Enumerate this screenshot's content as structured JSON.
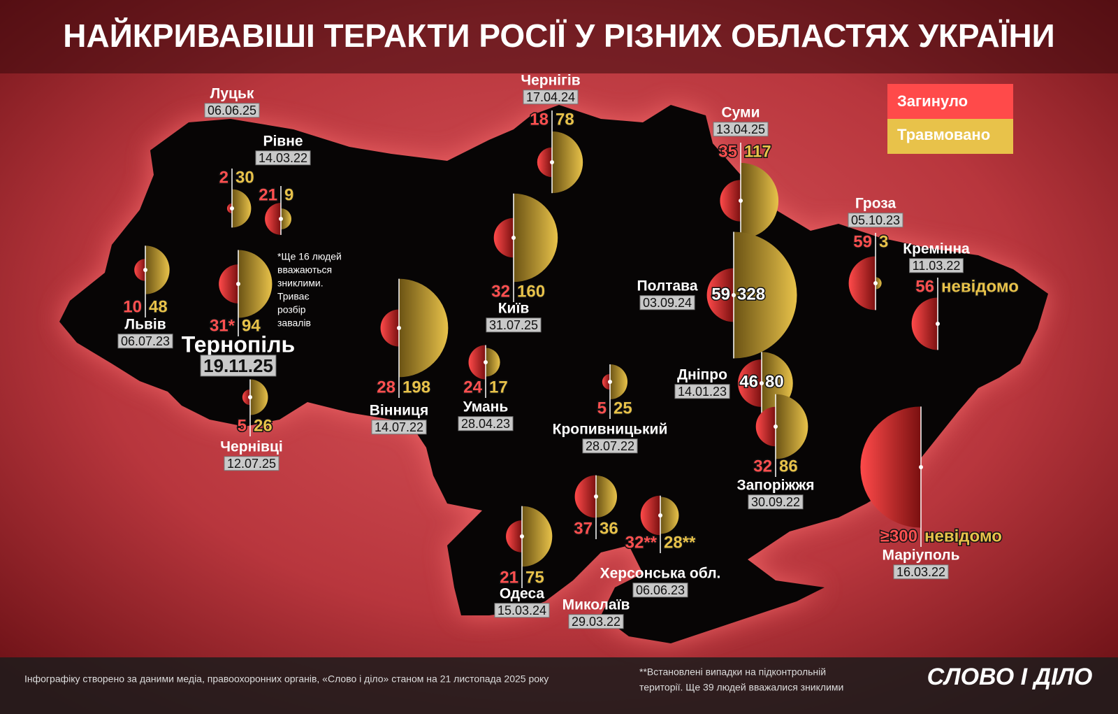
{
  "title": "НАЙКРИВАВІШІ ТЕРАКТИ РОСІЇ У РІЗНИХ ОБЛАСТЯХ УКРАЇНИ",
  "legend": {
    "killed": "Загинуло",
    "injured": "Травмовано"
  },
  "events": [
    {
      "city": "Луцьк",
      "date": "06.06.25",
      "killed": 2,
      "injured": 30
    },
    {
      "city": "Рівне",
      "date": "14.03.22",
      "killed": 21,
      "injured": 9
    },
    {
      "city": "Львів",
      "date": "06.07.23",
      "killed": 10,
      "injured": 48
    },
    {
      "city": "Тернопіль",
      "date": "19.11.25",
      "killed": 31,
      "killed_label": "31*",
      "injured": 94
    },
    {
      "city": "Чернівці",
      "date": "12.07.25",
      "killed": 5,
      "injured": 26
    },
    {
      "city": "Чернігів",
      "date": "17.04.24",
      "killed": 18,
      "injured": 78
    },
    {
      "city": "Київ",
      "date": "31.07.25",
      "killed": 32,
      "injured": 160
    },
    {
      "city": "Вінниця",
      "date": "14.07.22",
      "killed": 28,
      "injured": 198
    },
    {
      "city": "Умань",
      "date": "28.04.23",
      "killed": 24,
      "injured": 17
    },
    {
      "city": "Кропивницький",
      "date": "28.07.22",
      "killed": 5,
      "injured": 25
    },
    {
      "city": "Суми",
      "date": "13.04.25",
      "killed": 35,
      "injured": 117
    },
    {
      "city": "Полтава",
      "date": "03.09.24",
      "killed": 59,
      "injured": 328
    },
    {
      "city": "Дніпро",
      "date": "14.01.23",
      "killed": 46,
      "injured": 80
    },
    {
      "city": "Запоріжжя",
      "date": "30.09.22",
      "killed": 32,
      "injured": 86
    },
    {
      "city": "Гроза",
      "date": "05.10.23",
      "killed": 59,
      "injured": 3
    },
    {
      "city": "Кремінна",
      "date": "11.03.22",
      "killed": 56,
      "injured": null,
      "injured_label": "невідомо"
    },
    {
      "city": "Маріуполь",
      "date": "16.03.22",
      "killed": 300,
      "killed_label": "≥300",
      "injured": null,
      "injured_label": "невідомо"
    },
    {
      "city": "Миколаїв",
      "date": "29.03.22",
      "killed": 37,
      "injured": 36
    },
    {
      "city": "Херсонська обл.",
      "date": "06.06.23",
      "killed": 32,
      "killed_label": "32**",
      "injured": 28,
      "injured_label": "28**"
    },
    {
      "city": "Одеса",
      "date": "15.03.24",
      "killed": 21,
      "injured": 75
    }
  ],
  "ternopil_note": [
    "*Ще 16 людей",
    "вважаються",
    "зниклими.",
    "Триває",
    "розбір",
    "завалів"
  ],
  "footer": {
    "source": "Інфографіку створено за даними медіа, правоохоронних органів, «Слово і діло» станом на 21 листопада 2025 року",
    "note": [
      "**Встановлені випадки на підконтрольній",
      "території. Ще 39 людей вважалися зниклими"
    ],
    "brand": "СЛОВО І ДІЛО"
  }
}
